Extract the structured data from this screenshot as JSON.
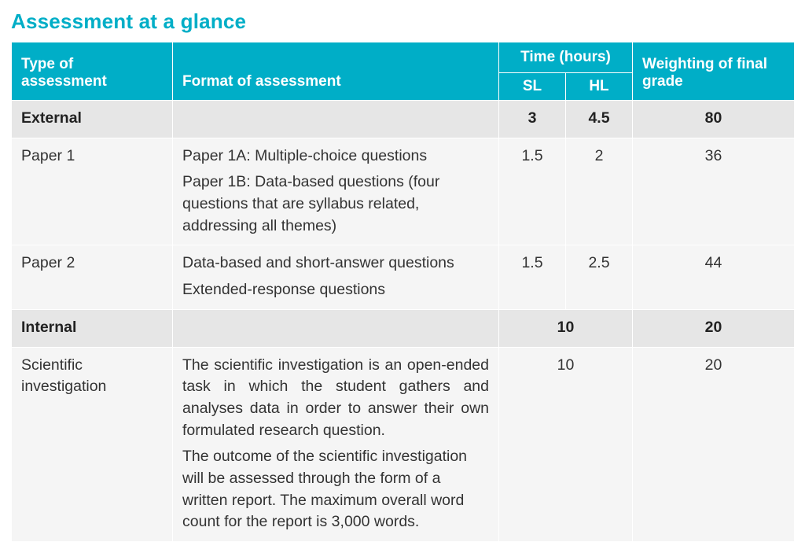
{
  "title": "Assessment at a glance",
  "colors": {
    "header_bg": "#00aec7",
    "header_text": "#ffffff",
    "section_bg": "#e6e6e6",
    "row_bg": "#f5f5f5",
    "title_color": "#00aec7",
    "body_text": "#333333"
  },
  "columns": {
    "type": "Type of assessment",
    "format": "Format of assessment",
    "time_group": "Time (hours)",
    "sl": "SL",
    "hl": "HL",
    "weight": "Weighting of final grade"
  },
  "rows": {
    "external": {
      "label": "External",
      "sl": "3",
      "hl": "4.5",
      "weight": "80"
    },
    "paper1": {
      "label": "Paper 1",
      "format_a": "Paper 1A: Multiple-choice questions",
      "format_b": "Paper 1B: Data-based questions (four questions that are syllabus related, addressing all themes)",
      "sl": "1.5",
      "hl": "2",
      "weight": "36"
    },
    "paper2": {
      "label": "Paper 2",
      "format_a": "Data-based and short-answer questions",
      "format_b": "Extended-response questions",
      "sl": "1.5",
      "hl": "2.5",
      "weight": "44"
    },
    "internal": {
      "label": "Internal",
      "time_merged": "10",
      "weight": "20"
    },
    "scientific": {
      "label": "Scientific investigation",
      "format_a": "The scientific investigation is an open-ended task in which the student gathers and analyses data in order to answer their own formulated research question.",
      "format_b": "The outcome of the scientific investigation will be assessed through the form of a written report. The maximum overall word count for the report is 3,000 words.",
      "time_merged": "10",
      "weight": "20"
    }
  }
}
